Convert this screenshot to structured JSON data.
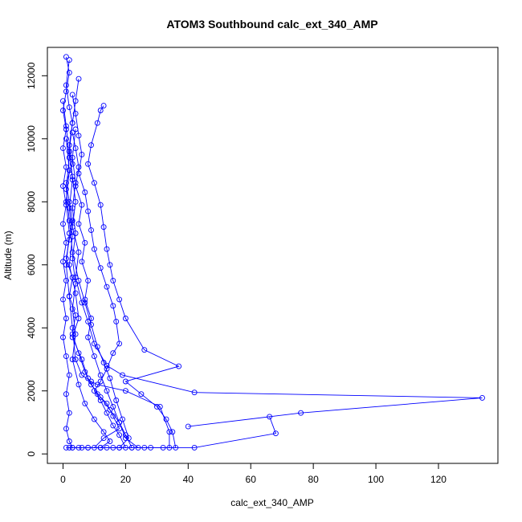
{
  "chart_data": {
    "type": "line",
    "title": "ATOM3 Southbound calc_ext_340_AMP",
    "xlabel": "calc_ext_340_AMP",
    "ylabel": "Altitude (m)",
    "xlim": [
      -5,
      139
    ],
    "ylim": [
      -300,
      12900
    ],
    "xticks": [
      0,
      20,
      40,
      60,
      80,
      100,
      120
    ],
    "yticks": [
      0,
      2000,
      4000,
      6000,
      8000,
      10000,
      12000
    ],
    "line_color": "#0000ff",
    "marker": "open-circle",
    "grid": false,
    "legend": "none",
    "series": [
      {
        "points": [
          [
            2,
            12500
          ],
          [
            1,
            11700
          ],
          [
            2,
            11000
          ],
          [
            3,
            10500
          ],
          [
            2,
            9800
          ],
          [
            3,
            9200
          ],
          [
            1,
            8600
          ],
          [
            2,
            8000
          ],
          [
            3,
            7400
          ],
          [
            2,
            6800
          ],
          [
            1,
            6200
          ],
          [
            3,
            5600
          ],
          [
            2,
            5000
          ],
          [
            4,
            4400
          ],
          [
            3,
            3800
          ],
          [
            5,
            3200
          ],
          [
            7,
            2600
          ],
          [
            9,
            2200
          ],
          [
            12,
            1800
          ],
          [
            15,
            1400
          ],
          [
            18,
            1000
          ],
          [
            20,
            600
          ],
          [
            22,
            200
          ],
          [
            16,
            200
          ]
        ]
      },
      {
        "points": [
          [
            1,
            12600
          ],
          [
            2,
            12100
          ],
          [
            1,
            11500
          ],
          [
            0,
            10900
          ],
          [
            1,
            10300
          ],
          [
            0,
            9700
          ],
          [
            1,
            9100
          ],
          [
            0,
            8500
          ],
          [
            1,
            7900
          ],
          [
            0,
            7300
          ],
          [
            1,
            6700
          ],
          [
            0,
            6100
          ],
          [
            1,
            5500
          ],
          [
            0,
            4900
          ],
          [
            1,
            4300
          ],
          [
            0,
            3700
          ],
          [
            1,
            3100
          ],
          [
            2,
            2500
          ],
          [
            1,
            1900
          ],
          [
            2,
            1300
          ],
          [
            1,
            800
          ],
          [
            2,
            400
          ],
          [
            3,
            200
          ]
        ]
      },
      {
        "points": [
          [
            13,
            11050
          ],
          [
            12,
            10900
          ],
          [
            11,
            10500
          ],
          [
            9,
            9800
          ],
          [
            8,
            9200
          ],
          [
            10,
            8600
          ],
          [
            12,
            7900
          ],
          [
            13,
            7200
          ],
          [
            14,
            6500
          ],
          [
            15,
            6000
          ],
          [
            16,
            5500
          ],
          [
            18,
            4900
          ],
          [
            20,
            4300
          ],
          [
            26,
            3300
          ],
          [
            37,
            2780
          ],
          [
            20,
            2300
          ],
          [
            25,
            1900
          ],
          [
            30,
            1500
          ],
          [
            33,
            1100
          ],
          [
            35,
            700
          ],
          [
            36,
            200
          ],
          [
            32,
            200
          ]
        ]
      },
      {
        "points": [
          [
            3,
            11400
          ],
          [
            4,
            10800
          ],
          [
            5,
            10100
          ],
          [
            6,
            9500
          ],
          [
            5,
            8900
          ],
          [
            7,
            8300
          ],
          [
            8,
            7700
          ],
          [
            9,
            7100
          ],
          [
            10,
            6500
          ],
          [
            12,
            5900
          ],
          [
            14,
            5300
          ],
          [
            16,
            4700
          ],
          [
            17,
            4200
          ],
          [
            18,
            3500
          ],
          [
            16,
            3200
          ],
          [
            14,
            2700
          ],
          [
            12,
            2300
          ],
          [
            10,
            2000
          ],
          [
            12,
            1700
          ],
          [
            14,
            1300
          ],
          [
            16,
            900
          ],
          [
            18,
            600
          ],
          [
            20,
            200
          ],
          [
            14,
            200
          ]
        ]
      },
      {
        "points": [
          [
            2,
            9600
          ],
          [
            3,
            8800
          ],
          [
            4,
            8000
          ],
          [
            3,
            7200
          ],
          [
            5,
            6400
          ],
          [
            4,
            5600
          ],
          [
            6,
            4800
          ],
          [
            8,
            4200
          ],
          [
            10,
            3500
          ],
          [
            14,
            2800
          ],
          [
            19,
            2500
          ],
          [
            42,
            1950
          ],
          [
            134,
            1780
          ],
          [
            76,
            1300
          ],
          [
            40,
            870
          ],
          [
            66,
            1180
          ],
          [
            68,
            650
          ],
          [
            42,
            200
          ],
          [
            22,
            200
          ]
        ]
      },
      {
        "points": [
          [
            1,
            10000
          ],
          [
            2,
            9000
          ],
          [
            1,
            8000
          ],
          [
            2,
            7000
          ],
          [
            1,
            6000
          ],
          [
            2,
            5000
          ],
          [
            3,
            4000
          ],
          [
            4,
            3000
          ],
          [
            6,
            2500
          ],
          [
            9,
            2300
          ],
          [
            11,
            2200
          ],
          [
            20,
            2000
          ],
          [
            31,
            1500
          ],
          [
            34,
            700
          ],
          [
            34,
            200
          ],
          [
            26,
            200
          ],
          [
            18,
            200
          ],
          [
            12,
            200
          ],
          [
            8,
            200
          ]
        ]
      },
      {
        "points": [
          [
            5,
            11900
          ],
          [
            4,
            11200
          ],
          [
            3,
            10500
          ],
          [
            2,
            9600
          ],
          [
            3,
            8700
          ],
          [
            2,
            7800
          ],
          [
            3,
            6900
          ],
          [
            2,
            6000
          ],
          [
            4,
            5100
          ],
          [
            5,
            4300
          ],
          [
            3,
            3700
          ],
          [
            6,
            3000
          ],
          [
            8,
            2400
          ],
          [
            11,
            1900
          ],
          [
            14,
            1600
          ],
          [
            16,
            1200
          ],
          [
            18,
            800
          ],
          [
            13,
            500
          ],
          [
            10,
            200
          ],
          [
            6,
            200
          ],
          [
            2,
            200
          ]
        ]
      },
      {
        "points": [
          [
            0,
            11200
          ],
          [
            1,
            10400
          ],
          [
            2,
            9400
          ],
          [
            1,
            8400
          ],
          [
            2,
            7400
          ],
          [
            3,
            6400
          ],
          [
            5,
            5500
          ],
          [
            7,
            4800
          ],
          [
            9,
            4100
          ],
          [
            11,
            3400
          ],
          [
            13,
            2900
          ],
          [
            15,
            2400
          ],
          [
            17,
            1700
          ],
          [
            19,
            1100
          ],
          [
            21,
            500
          ],
          [
            18,
            200
          ],
          [
            12,
            200
          ]
        ]
      },
      {
        "points": [
          [
            3,
            10200
          ],
          [
            4,
            9700
          ],
          [
            5,
            9100
          ],
          [
            4,
            8500
          ],
          [
            6,
            7900
          ],
          [
            5,
            7300
          ],
          [
            7,
            6700
          ],
          [
            6,
            6100
          ],
          [
            8,
            5500
          ],
          [
            7,
            4900
          ],
          [
            9,
            4300
          ],
          [
            8,
            3700
          ],
          [
            10,
            3100
          ],
          [
            12,
            2500
          ],
          [
            14,
            2000
          ],
          [
            16,
            1500
          ],
          [
            18,
            1000
          ],
          [
            20,
            500
          ],
          [
            24,
            200
          ],
          [
            28,
            200
          ]
        ]
      },
      {
        "points": [
          [
            4,
            10300
          ],
          [
            3,
            9400
          ],
          [
            4,
            8600
          ],
          [
            3,
            7800
          ],
          [
            4,
            7000
          ],
          [
            3,
            6200
          ],
          [
            4,
            5400
          ],
          [
            3,
            4600
          ],
          [
            4,
            3800
          ],
          [
            3,
            3000
          ],
          [
            5,
            2200
          ],
          [
            7,
            1600
          ],
          [
            10,
            1100
          ],
          [
            13,
            700
          ],
          [
            15,
            400
          ],
          [
            12,
            200
          ],
          [
            8,
            200
          ],
          [
            5,
            200
          ],
          [
            3,
            200
          ],
          [
            1,
            200
          ]
        ]
      }
    ]
  }
}
